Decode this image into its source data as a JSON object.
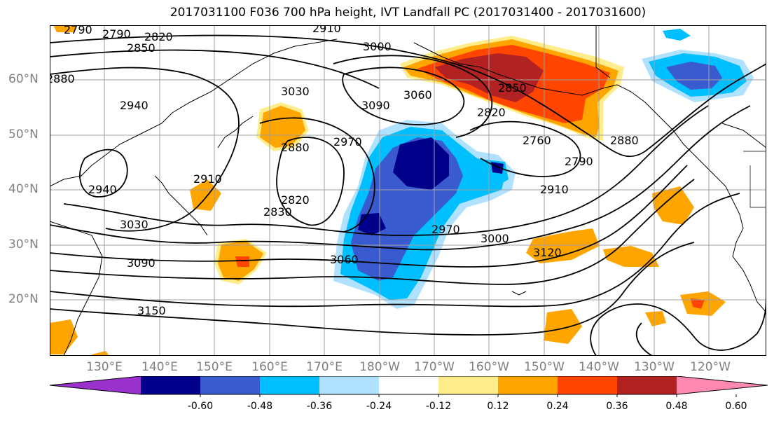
{
  "title": "2017031100 F036 700 hPa height, IVT Landfall PC (2017031400 - 2017031600)",
  "lat_labels": [
    "60°N",
    "50°N",
    "40°N",
    "30°N",
    "20°N"
  ],
  "lon_labels": [
    "130°E",
    "140°E",
    "150°E",
    "160°E",
    "170°E",
    "180°W",
    "170°W",
    "160°W",
    "150°W",
    "140°W",
    "130°W",
    "120°W"
  ],
  "contour_labels": [
    "2790",
    "2790",
    "2820",
    "2850",
    "2910",
    "2880",
    "3000",
    "3030",
    "3060",
    "3090",
    "2940",
    "2970",
    "2850",
    "2880",
    "2760",
    "2790",
    "2820",
    "2880",
    "2910",
    "2940",
    "2970",
    "3000",
    "3030",
    "3060",
    "3090",
    "3120",
    "3150",
    "2830",
    "2820",
    "2910"
  ],
  "colorbar": {
    "ticks": [
      "-0.60",
      "-0.48",
      "-0.36",
      "-0.24",
      "-0.12",
      "0.12",
      "0.24",
      "0.36",
      "0.48",
      "0.60"
    ],
    "colors": [
      "#9932cc",
      "#00008b",
      "#3a5bd0",
      "#00bfff",
      "#b0e2ff",
      "#ffffff",
      "#ffec8b",
      "#ffa500",
      "#ff4500",
      "#b22222",
      "#ff88b0"
    ]
  },
  "fill_colors": {
    "neg_light": "#b0e2ff",
    "neg_mid": "#00bfff",
    "neg_strong": "#3a5bd0",
    "neg_max": "#00008b",
    "pos_light": "#ffec8b",
    "pos_mid": "#ffa500",
    "pos_strong": "#ff4500",
    "pos_max": "#b22222"
  }
}
